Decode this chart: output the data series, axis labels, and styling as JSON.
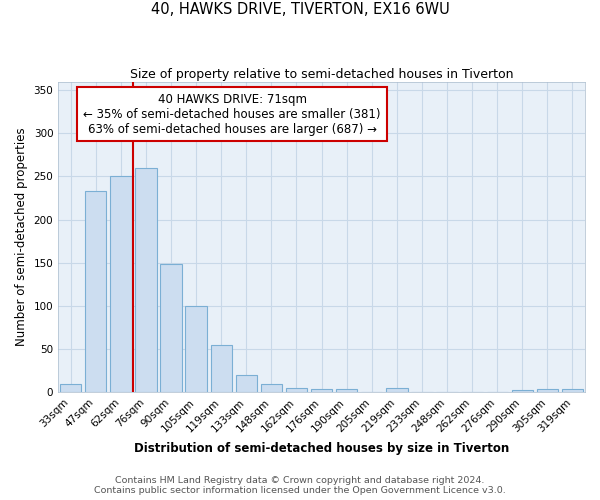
{
  "title": "40, HAWKS DRIVE, TIVERTON, EX16 6WU",
  "subtitle": "Size of property relative to semi-detached houses in Tiverton",
  "xlabel": "Distribution of semi-detached houses by size in Tiverton",
  "ylabel": "Number of semi-detached properties",
  "categories": [
    "33sqm",
    "47sqm",
    "62sqm",
    "76sqm",
    "90sqm",
    "105sqm",
    "119sqm",
    "133sqm",
    "148sqm",
    "162sqm",
    "176sqm",
    "190sqm",
    "205sqm",
    "219sqm",
    "233sqm",
    "248sqm",
    "262sqm",
    "276sqm",
    "290sqm",
    "305sqm",
    "319sqm"
  ],
  "values": [
    9,
    233,
    250,
    260,
    148,
    100,
    54,
    20,
    9,
    5,
    3,
    3,
    0,
    5,
    0,
    0,
    0,
    0,
    2,
    3,
    4
  ],
  "bar_color": "#ccddf0",
  "bar_edge_color": "#7bafd4",
  "property_label": "40 HAWKS DRIVE: 71sqm",
  "pct_smaller": 35,
  "n_smaller": 381,
  "pct_larger": 63,
  "n_larger": 687,
  "red_line_color": "#cc0000",
  "annotation_box_edge": "#cc0000",
  "annotation_box_face": "#ffffff",
  "footer1": "Contains HM Land Registry data © Crown copyright and database right 2024.",
  "footer2": "Contains public sector information licensed under the Open Government Licence v3.0.",
  "ylim": [
    0,
    360
  ],
  "yticks": [
    0,
    50,
    100,
    150,
    200,
    250,
    300,
    350
  ],
  "grid_color": "#c8d8e8",
  "bg_color": "#e8f0f8",
  "title_fontsize": 10.5,
  "subtitle_fontsize": 9,
  "axis_label_fontsize": 8.5,
  "tick_fontsize": 7.5,
  "footer_fontsize": 6.8,
  "annotation_fontsize": 8.5
}
